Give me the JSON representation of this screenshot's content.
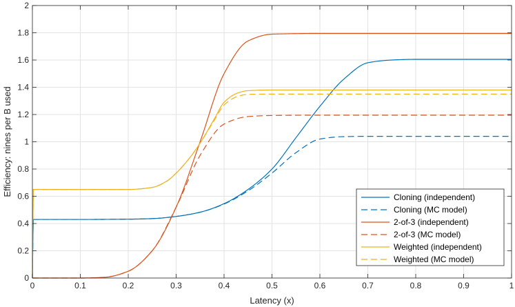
{
  "chart_data": {
    "type": "line",
    "title": "",
    "xlabel": "Latency (x)",
    "ylabel": "Efficiency: nines per B used",
    "xlim": [
      0,
      1
    ],
    "ylim": [
      0,
      2
    ],
    "xticks": [
      0,
      0.1,
      0.2,
      0.3,
      0.4,
      0.5,
      0.6,
      0.7,
      0.8,
      0.9,
      1
    ],
    "xtick_labels": [
      "0",
      "0.1",
      "0.2",
      "0.3",
      "0.4",
      "0.5",
      "0.6",
      "0.7",
      "0.8",
      "0.9",
      "1"
    ],
    "yticks": [
      0,
      0.2,
      0.4,
      0.6,
      0.8,
      1,
      1.2,
      1.4,
      1.6,
      1.8,
      2
    ],
    "ytick_labels": [
      "0",
      "0.2",
      "0.4",
      "0.6",
      "0.8",
      "1",
      "1.2",
      "1.4",
      "1.6",
      "1.8",
      "2"
    ],
    "grid": true,
    "legend_position": "bottom-right",
    "series": [
      {
        "name": "Cloning (independent)",
        "color": "#0072BD",
        "dash": "solid",
        "x": [
          0,
          0.002,
          0.1,
          0.2,
          0.25,
          0.3,
          0.35,
          0.4,
          0.45,
          0.5,
          0.55,
          0.6,
          0.65,
          0.7,
          0.75,
          0.8,
          0.9,
          1.0
        ],
        "y": [
          0,
          0.43,
          0.43,
          0.432,
          0.436,
          0.452,
          0.483,
          0.546,
          0.65,
          0.8,
          1.03,
          1.26,
          1.46,
          1.58,
          1.6,
          1.605,
          1.605,
          1.605
        ]
      },
      {
        "name": "Cloning (MC model)",
        "color": "#0072BD",
        "dash": "dashed",
        "x": [
          0,
          0.002,
          0.1,
          0.2,
          0.25,
          0.3,
          0.35,
          0.4,
          0.45,
          0.5,
          0.55,
          0.6,
          0.65,
          0.7,
          0.8,
          0.9,
          1.0
        ],
        "y": [
          0,
          0.43,
          0.43,
          0.432,
          0.436,
          0.452,
          0.483,
          0.543,
          0.64,
          0.77,
          0.92,
          1.02,
          1.038,
          1.04,
          1.04,
          1.04,
          1.04
        ]
      },
      {
        "name": "2-of-3 (independent)",
        "color": "#D95319",
        "dash": "solid",
        "x": [
          0,
          0.1,
          0.15,
          0.2,
          0.25,
          0.3,
          0.35,
          0.4,
          0.45,
          0.5,
          0.6,
          0.7,
          0.8,
          0.9,
          1.0
        ],
        "y": [
          0,
          0,
          0.005,
          0.05,
          0.2,
          0.52,
          1.0,
          1.5,
          1.74,
          1.79,
          1.795,
          1.795,
          1.795,
          1.795,
          1.795
        ]
      },
      {
        "name": "2-of-3 (MC model)",
        "color": "#D95319",
        "dash": "dashed",
        "x": [
          0,
          0.1,
          0.15,
          0.2,
          0.25,
          0.3,
          0.35,
          0.4,
          0.45,
          0.5,
          0.6,
          0.7,
          0.8,
          0.9,
          1.0
        ],
        "y": [
          0,
          0,
          0.005,
          0.05,
          0.2,
          0.52,
          0.9,
          1.13,
          1.185,
          1.193,
          1.195,
          1.195,
          1.195,
          1.195,
          1.195
        ]
      },
      {
        "name": "Weighted (independent)",
        "color": "#EDB120",
        "dash": "solid",
        "x": [
          0,
          0.002,
          0.1,
          0.2,
          0.25,
          0.28,
          0.3,
          0.33,
          0.35,
          0.38,
          0.4,
          0.43,
          0.45,
          0.5,
          0.6,
          0.8,
          1.0
        ],
        "y": [
          0,
          0.65,
          0.65,
          0.65,
          0.665,
          0.71,
          0.77,
          0.89,
          0.99,
          1.17,
          1.29,
          1.36,
          1.375,
          1.38,
          1.38,
          1.38,
          1.38
        ]
      },
      {
        "name": "Weighted (MC model)",
        "color": "#EDB120",
        "dash": "dashed",
        "x": [
          0,
          0.002,
          0.1,
          0.2,
          0.25,
          0.28,
          0.3,
          0.33,
          0.35,
          0.38,
          0.4,
          0.43,
          0.45,
          0.5,
          0.6,
          0.8,
          1.0
        ],
        "y": [
          0,
          0.65,
          0.65,
          0.65,
          0.665,
          0.71,
          0.77,
          0.89,
          0.99,
          1.16,
          1.27,
          1.335,
          1.348,
          1.35,
          1.35,
          1.35,
          1.35
        ]
      }
    ]
  }
}
